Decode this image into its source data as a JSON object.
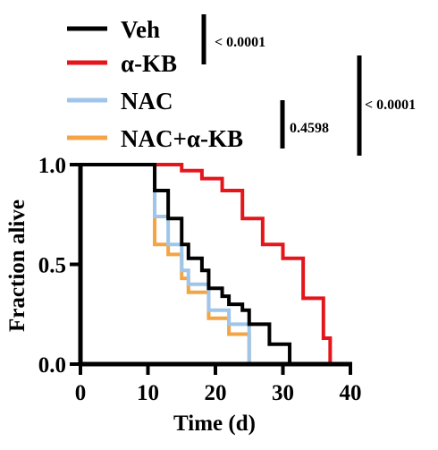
{
  "chart_data": {
    "type": "line",
    "subtype": "kaplan-meier step",
    "xlabel": "Time (d)",
    "ylabel": "Fraction alive",
    "xlim": [
      0,
      40
    ],
    "ylim": [
      0,
      1
    ],
    "xticks": [
      "0",
      "10",
      "20",
      "30",
      "40"
    ],
    "yticks": [
      "0.0",
      "0.5",
      "1.0"
    ],
    "grid": false,
    "legend_position": "top",
    "series": [
      {
        "name": "Veh",
        "color": "#000000",
        "x": [
          0,
          10,
          11,
          13,
          15,
          16,
          18,
          19,
          21,
          22,
          24,
          25,
          27,
          28,
          30,
          31
        ],
        "y": [
          1.0,
          1.0,
          0.87,
          0.73,
          0.6,
          0.53,
          0.47,
          0.38,
          0.34,
          0.3,
          0.27,
          0.2,
          0.2,
          0.1,
          0.1,
          0.0
        ]
      },
      {
        "name": "α-KB",
        "color": "#e4161b",
        "x": [
          0,
          13,
          15,
          16,
          18,
          19,
          21,
          22,
          24,
          25,
          27,
          28,
          30,
          31,
          33,
          34,
          36,
          37
        ],
        "y": [
          1.0,
          1.0,
          0.97,
          0.97,
          0.93,
          0.93,
          0.87,
          0.87,
          0.73,
          0.73,
          0.6,
          0.6,
          0.53,
          0.53,
          0.33,
          0.33,
          0.13,
          0.0
        ]
      },
      {
        "name": "NAC",
        "color": "#9ec5ea",
        "x": [
          0,
          10,
          11,
          13,
          15,
          16,
          19,
          22,
          25
        ],
        "y": [
          1.0,
          1.0,
          0.74,
          0.6,
          0.47,
          0.4,
          0.27,
          0.2,
          0.0
        ]
      },
      {
        "name": "NAC+α-KB",
        "color": "#f3a545",
        "x": [
          0,
          10,
          11,
          13,
          15,
          16,
          19,
          22,
          25
        ],
        "y": [
          1.0,
          1.0,
          0.6,
          0.55,
          0.43,
          0.36,
          0.23,
          0.15,
          0.0
        ]
      }
    ],
    "annotations": [
      "< 0.0001",
      "0.4598",
      "< 0.0001"
    ]
  }
}
